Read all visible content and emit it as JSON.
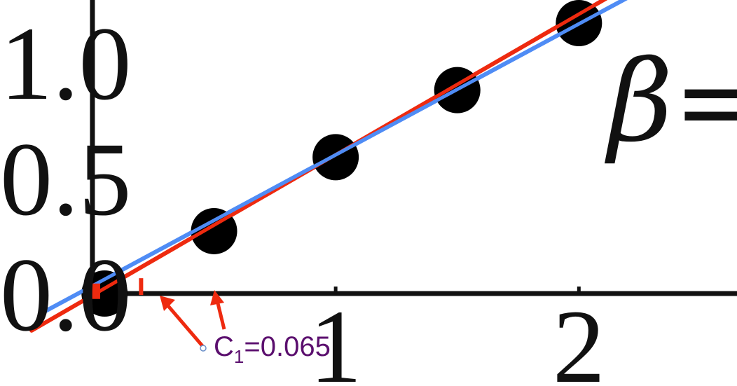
{
  "chart_data": {
    "type": "scatter",
    "title": "",
    "xlabel": "",
    "ylabel": "",
    "x_ticks": [
      {
        "value": 1,
        "label": "1"
      },
      {
        "value": 2,
        "label": "2"
      }
    ],
    "y_ticks": [
      {
        "value": 0.0,
        "label": "0.0"
      },
      {
        "value": 0.5,
        "label": "0.5"
      },
      {
        "value": 1.0,
        "label": "1.0"
      }
    ],
    "xlim": [
      -0.38,
      2.65
    ],
    "ylim": [
      -0.4,
      1.27
    ],
    "grid": false,
    "points": [
      {
        "x": 0.05,
        "y": 0.0
      },
      {
        "x": 0.5,
        "y": 0.27
      },
      {
        "x": 1.0,
        "y": 0.59
      },
      {
        "x": 1.5,
        "y": 0.88
      },
      {
        "x": 2.0,
        "y": 1.17
      }
    ],
    "lines": [
      {
        "color": "#ee2a0f",
        "x": [
          -0.25,
          2.15
        ],
        "y": [
          -0.16,
          1.3
        ]
      },
      {
        "color": "#4f8cf5",
        "x": [
          -0.2,
          2.2
        ],
        "y": [
          -0.08,
          1.28
        ]
      }
    ],
    "markers": [
      {
        "shape": "square",
        "color": "#ee2a0f",
        "x": 0.0,
        "y": 0.01
      },
      {
        "shape": "dash",
        "color": "#ee2a0f",
        "x": 0.2,
        "y": 0.03
      }
    ],
    "annotations": [
      {
        "text_main": "C",
        "text_sub": "1",
        "text_rest": "=0.065"
      }
    ],
    "beta_text": "β="
  },
  "colors": {
    "axis": "#111111",
    "points": "#000000",
    "arrows": "#ee2a0f",
    "annotation": "#5b0f6e"
  }
}
